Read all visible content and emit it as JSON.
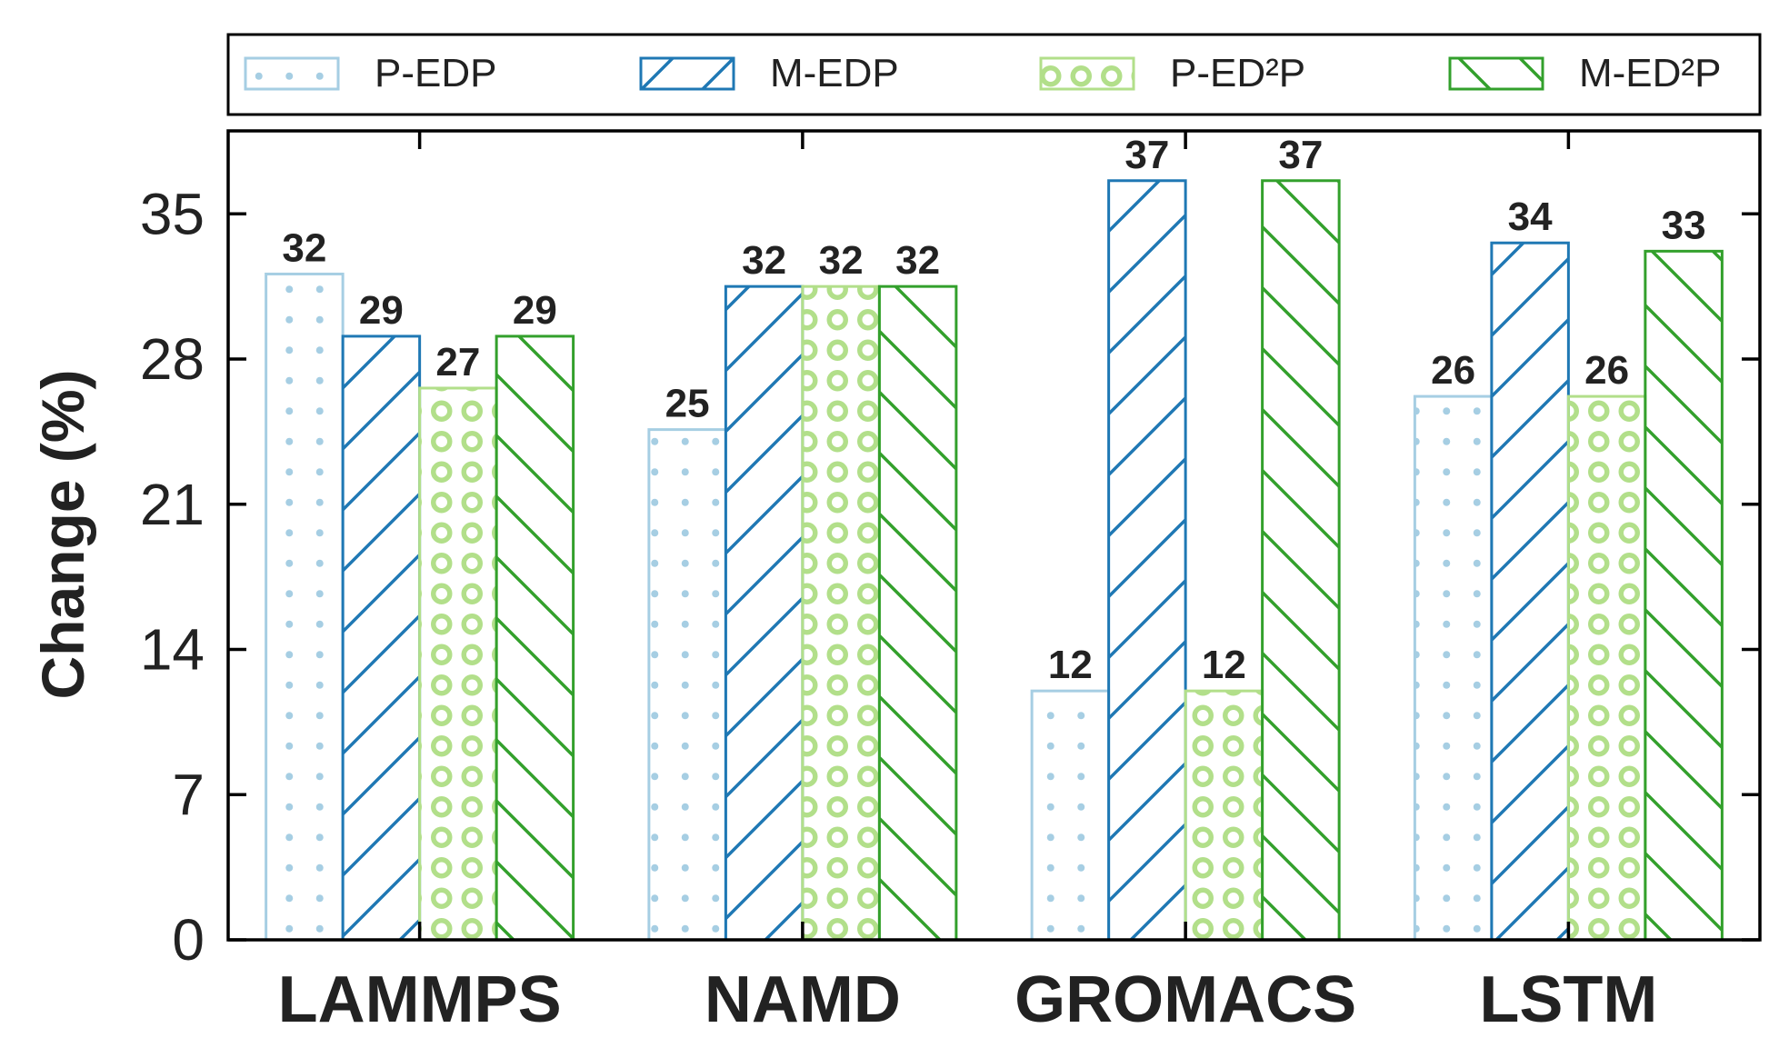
{
  "chart_data": {
    "type": "bar",
    "categories": [
      "LAMMPS",
      "NAMD",
      "GROMACS",
      "LSTM"
    ],
    "series": [
      {
        "name": "P-EDP",
        "values": [
          32,
          25,
          12,
          26
        ],
        "value_labels": [
          "32",
          "25",
          "12",
          "26"
        ],
        "color": "#a6cee3",
        "pattern": "dots"
      },
      {
        "name": "M-EDP",
        "values": [
          29,
          32,
          37,
          34
        ],
        "value_labels": [
          "29",
          "32",
          "37",
          "34"
        ],
        "color": "#1f78b4",
        "pattern": "forward-hatch"
      },
      {
        "name": "P-ED²P",
        "values": [
          27,
          32,
          12,
          26
        ],
        "value_labels": [
          "27",
          "32",
          "12",
          "26"
        ],
        "color": "#b2df8a",
        "pattern": "rings"
      },
      {
        "name": "M-ED²P",
        "values": [
          29,
          32,
          37,
          33
        ],
        "value_labels": [
          "29",
          "32",
          "37",
          "33"
        ],
        "color": "#33a02c",
        "pattern": "back-hatch"
      }
    ],
    "bar_heights": [
      [
        32.1,
        24.6,
        12.0,
        26.2
      ],
      [
        29.1,
        31.5,
        36.6,
        33.6
      ],
      [
        26.6,
        31.5,
        12.0,
        26.2
      ],
      [
        29.1,
        31.5,
        36.6,
        33.2
      ]
    ],
    "ylabel": "Change (%)",
    "xlabel": "",
    "yticks": [
      0,
      7,
      14,
      21,
      28,
      35
    ],
    "ylim": [
      0,
      39
    ],
    "legend_position": "top",
    "grid": false
  }
}
